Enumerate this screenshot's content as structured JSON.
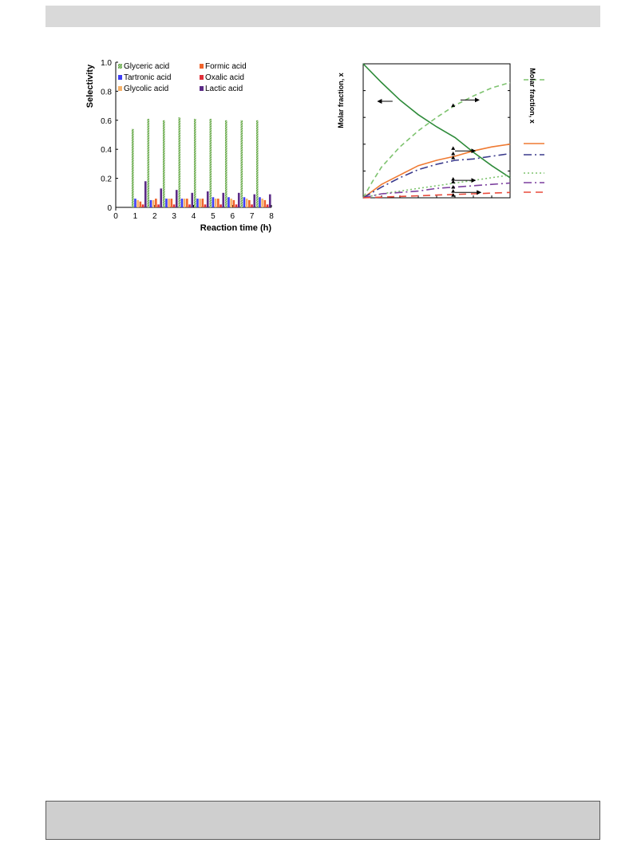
{
  "chart_data": [
    {
      "type": "bar",
      "xlabel": "Reaction time (h)",
      "ylabel": "Selectivity",
      "xlim": [
        0,
        8
      ],
      "ylim": [
        0,
        1.0
      ],
      "x_ticks": [
        "0",
        "1",
        "2",
        "3",
        "4",
        "5",
        "6",
        "7",
        "8"
      ],
      "y_ticks": [
        "0",
        "0.2",
        "0.4",
        "0.6",
        "0.8",
        "1.0"
      ],
      "categories": [
        1.2,
        2.0,
        2.8,
        3.6,
        4.4,
        5.2,
        6.0,
        6.8,
        7.6
      ],
      "legend_placement": "top",
      "series": [
        {
          "name": "Glyceric acid",
          "color": "#6aa84f",
          "values": [
            0.54,
            0.61,
            0.6,
            0.62,
            0.61,
            0.61,
            0.6,
            0.6,
            0.6
          ]
        },
        {
          "name": "Tartronic acid",
          "color": "#3d3df5",
          "values": [
            0.06,
            0.05,
            0.06,
            0.06,
            0.06,
            0.07,
            0.07,
            0.07,
            0.07
          ]
        },
        {
          "name": "Glycolic acid",
          "color": "#f6b26b",
          "values": [
            0.05,
            0.05,
            0.06,
            0.06,
            0.06,
            0.06,
            0.06,
            0.06,
            0.06
          ]
        },
        {
          "name": "Formic acid",
          "color": "#f0632b",
          "values": [
            0.04,
            0.06,
            0.06,
            0.06,
            0.06,
            0.06,
            0.05,
            0.05,
            0.05
          ]
        },
        {
          "name": "Oxalic acid",
          "color": "#e0303a",
          "values": [
            0.02,
            0.02,
            0.02,
            0.02,
            0.02,
            0.02,
            0.02,
            0.02,
            0.02
          ]
        },
        {
          "name": "Lactic acid",
          "color": "#5b2a86",
          "values": [
            0.18,
            0.13,
            0.12,
            0.1,
            0.11,
            0.1,
            0.1,
            0.09,
            0.09
          ]
        }
      ]
    },
    {
      "type": "line",
      "ylabel": "Molar fraction, x",
      "ylabel_right": "Molar fraction, x",
      "xlim": [
        0,
        8
      ],
      "ylim": [
        0,
        1.0
      ],
      "grid": false,
      "series": [
        {
          "color": "#2e8b3a",
          "dash": "",
          "x": [
            0,
            0.5,
            1,
            2,
            3,
            4,
            5,
            6,
            7,
            8
          ],
          "y": [
            1.0,
            0.93,
            0.86,
            0.73,
            0.62,
            0.53,
            0.45,
            0.34,
            0.24,
            0.15
          ]
        },
        {
          "color": "#7ec36f",
          "dash": "6,4",
          "x": [
            0,
            0.5,
            1,
            2,
            3,
            4,
            5,
            6,
            7,
            8
          ],
          "y": [
            0.0,
            0.12,
            0.23,
            0.38,
            0.5,
            0.6,
            0.69,
            0.76,
            0.82,
            0.86
          ]
        },
        {
          "color": "#ef7a32",
          "dash": "",
          "x": [
            0,
            0.5,
            1,
            2,
            3,
            4,
            5,
            6,
            7,
            8
          ],
          "y": [
            0.0,
            0.05,
            0.1,
            0.17,
            0.24,
            0.28,
            0.31,
            0.35,
            0.38,
            0.4
          ]
        },
        {
          "color": "#3a3a8c",
          "dash": "10,4,2,4",
          "x": [
            0,
            0.5,
            1,
            2,
            3,
            4,
            5,
            6,
            7,
            8
          ],
          "y": [
            0.0,
            0.04,
            0.08,
            0.15,
            0.21,
            0.25,
            0.28,
            0.29,
            0.31,
            0.33
          ]
        },
        {
          "color": "#7ec36f",
          "dash": "2,3",
          "x": [
            0,
            1,
            2,
            3,
            4,
            5,
            6,
            7,
            8
          ],
          "y": [
            0.0,
            0.03,
            0.05,
            0.07,
            0.09,
            0.11,
            0.13,
            0.15,
            0.17
          ]
        },
        {
          "color": "#7b3f9e",
          "dash": "10,4,2,4",
          "x": [
            0,
            1,
            2,
            3,
            4,
            5,
            6,
            7,
            8
          ],
          "y": [
            0.0,
            0.03,
            0.04,
            0.05,
            0.07,
            0.08,
            0.09,
            0.1,
            0.11
          ]
        },
        {
          "color": "#e84a3b",
          "dash": "9,6",
          "x": [
            0,
            1,
            2,
            3,
            4,
            5,
            6,
            7,
            8
          ],
          "y": [
            0.0,
            0.005,
            0.01,
            0.015,
            0.02,
            0.025,
            0.03,
            0.035,
            0.04
          ]
        }
      ]
    }
  ]
}
